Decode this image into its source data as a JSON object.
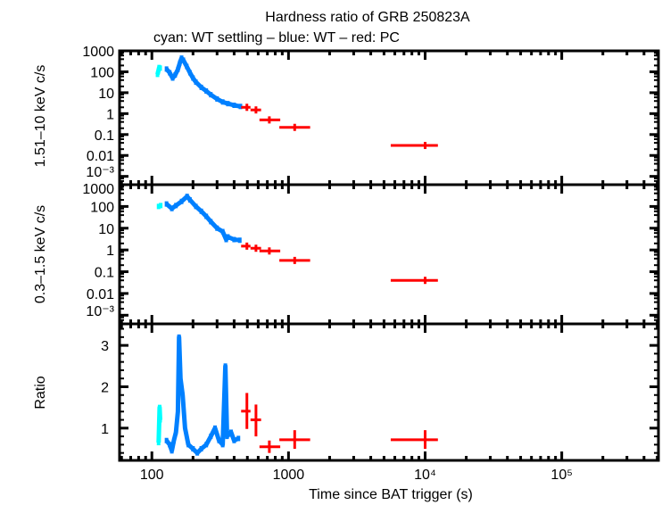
{
  "chart_data": [
    {
      "type": "scatter",
      "title": "Hardness ratio of GRB 250823A",
      "subtitle": "cyan: WT settling – blue: WT – red: PC",
      "ylabel": "1.51–10 keV c/s",
      "xlabel": "",
      "xscale": "log",
      "yscale": "log",
      "xlim": [
        58,
        510000
      ],
      "ylim": [
        0.0004,
        1000
      ],
      "yticks": [
        "1000",
        "100",
        "10",
        "1",
        "0.1",
        "0.01",
        "10⁻³"
      ],
      "series": [
        {
          "color": "#00ffff",
          "points": [
            [
              110,
              75
            ],
            [
              113,
              160
            ],
            [
              115,
              150
            ]
          ]
        },
        {
          "color": "#0080ff",
          "points": [
            [
              128,
              135
            ],
            [
              135,
              90
            ],
            [
              142,
              50
            ],
            [
              148,
              70
            ],
            [
              155,
              130
            ],
            [
              160,
              260
            ],
            [
              165,
              450
            ],
            [
              170,
              360
            ],
            [
              180,
              180
            ],
            [
              190,
              90
            ],
            [
              200,
              50
            ],
            [
              210,
              32
            ],
            [
              230,
              18
            ],
            [
              250,
              12
            ],
            [
              270,
              8
            ],
            [
              300,
              5
            ],
            [
              330,
              3.6
            ],
            [
              360,
              3
            ],
            [
              400,
              2.5
            ],
            [
              445,
              2.2
            ]
          ]
        },
        {
          "color": "#ff0000",
          "errorbars": [
            [
              496,
              450,
              527,
              2.0
            ],
            [
              578,
              527,
              630,
              1.5
            ],
            [
              724,
              613,
              870,
              0.5
            ],
            [
              1110,
              857,
              1440,
              0.22
            ],
            [
              10000,
              5600,
              12400,
              0.03
            ]
          ]
        }
      ]
    },
    {
      "type": "scatter",
      "ylabel": "0.3–1.5 keV c/s",
      "xscale": "log",
      "yscale": "log",
      "xlim": [
        58,
        510000
      ],
      "ylim": [
        0.0004,
        1000
      ],
      "yticks": [
        "1000",
        "100",
        "10",
        "1",
        "0.1",
        "0.01",
        "10⁻³"
      ],
      "series": [
        {
          "color": "#00ffff",
          "points": [
            [
              112,
              100
            ],
            [
              116,
              110
            ]
          ]
        },
        {
          "color": "#0080ff",
          "points": [
            [
              128,
              130
            ],
            [
              140,
              80
            ],
            [
              150,
              110
            ],
            [
              165,
              170
            ],
            [
              181,
              290
            ],
            [
              190,
              200
            ],
            [
              210,
              100
            ],
            [
              230,
              60
            ],
            [
              250,
              35
            ],
            [
              270,
              20
            ],
            [
              300,
              10
            ],
            [
              330,
              7
            ],
            [
              350,
              3
            ],
            [
              360,
              4
            ],
            [
              400,
              3
            ],
            [
              440,
              2.8
            ]
          ]
        },
        {
          "color": "#ff0000",
          "errorbars": [
            [
              496,
              450,
              527,
              1.5
            ],
            [
              578,
              527,
              630,
              1.2
            ],
            [
              724,
              613,
              870,
              0.9
            ],
            [
              1110,
              857,
              1440,
              0.33
            ],
            [
              10000,
              5600,
              12400,
              0.04
            ]
          ]
        }
      ]
    },
    {
      "type": "scatter",
      "ylabel": "Ratio",
      "xlabel": "Time since BAT trigger (s)",
      "xscale": "log",
      "yscale": "linear",
      "xlim": [
        58,
        510000
      ],
      "ylim": [
        0.22,
        3.52
      ],
      "yticks": [
        "1",
        "2",
        "3"
      ],
      "xticks": [
        "100",
        "1000",
        "10⁴",
        "10⁵"
      ],
      "series": [
        {
          "color": "#00ffff",
          "points": [
            [
              112,
              0.65
            ],
            [
              114,
              1.5
            ],
            [
              115,
              1.2
            ]
          ]
        },
        {
          "color": "#0080ff",
          "points": [
            [
              128,
              0.7
            ],
            [
              135,
              0.6
            ],
            [
              140,
              0.45
            ],
            [
              145,
              0.7
            ],
            [
              150,
              0.9
            ],
            [
              155,
              1.4
            ],
            [
              158,
              3.2
            ],
            [
              162,
              2.2
            ],
            [
              168,
              1.8
            ],
            [
              175,
              1.0
            ],
            [
              185,
              0.6
            ],
            [
              200,
              0.5
            ],
            [
              215,
              0.4
            ],
            [
              230,
              0.5
            ],
            [
              250,
              0.6
            ],
            [
              270,
              0.8
            ],
            [
              290,
              1.0
            ],
            [
              310,
              0.7
            ],
            [
              330,
              0.6
            ],
            [
              345,
              2.5
            ],
            [
              355,
              0.8
            ],
            [
              380,
              0.9
            ],
            [
              400,
              0.7
            ],
            [
              430,
              0.75
            ]
          ]
        },
        {
          "color": "#ff0000",
          "errorbars": [
            [
              496,
              450,
              527,
              1.41,
              0.98,
              1.85
            ],
            [
              578,
              527,
              630,
              1.2,
              0.8,
              1.57
            ],
            [
              724,
              613,
              870,
              0.55,
              0.4,
              0.7
            ],
            [
              1110,
              857,
              1440,
              0.72,
              0.5,
              0.95
            ],
            [
              10000,
              5600,
              12400,
              0.72,
              0.5,
              0.95
            ]
          ]
        }
      ]
    }
  ]
}
